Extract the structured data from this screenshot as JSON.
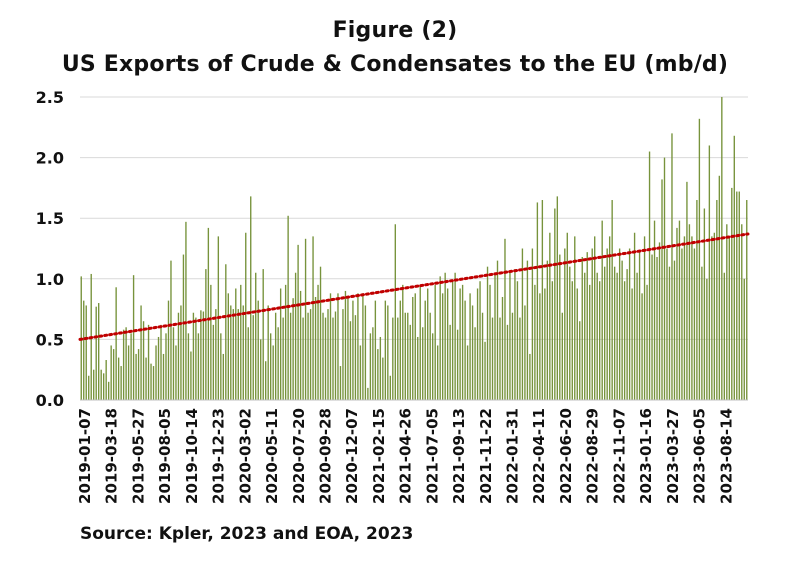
{
  "chart_data": {
    "type": "bar",
    "title": "Figure (2)",
    "subtitle": "US Exports of Crude & Condensates to the EU (mb/d)",
    "xlabel": "",
    "ylabel": "",
    "ylim": [
      0,
      2.5
    ],
    "yticks": [
      "0.0",
      "0.5",
      "1.0",
      "1.5",
      "2.0",
      "2.5"
    ],
    "xtick_labels": [
      "2019-01-07",
      "2019-03-18",
      "2019-05-27",
      "2019-08-05",
      "2019-10-14",
      "2019-12-23",
      "2020-03-02",
      "2020-05-11",
      "2020-07-20",
      "2020-09-28",
      "2020-12-07",
      "2021-02-15",
      "2021-04-26",
      "2021-07-05",
      "2021-09-13",
      "2021-11-22",
      "2022-01-31",
      "2022-04-11",
      "2022-06-20",
      "2022-08-29",
      "2022-11-07",
      "2023-01-16",
      "2023-03-27",
      "2023-06-05",
      "2023-08-14"
    ],
    "bar_color": "#77933c",
    "trendline": {
      "style": "dotted",
      "color": "#c00000",
      "start": 0.5,
      "end": 1.37
    },
    "values": [
      1.02,
      0.82,
      0.78,
      0.2,
      1.04,
      0.25,
      0.77,
      0.8,
      0.25,
      0.22,
      0.33,
      0.15,
      0.45,
      0.42,
      0.93,
      0.35,
      0.28,
      0.58,
      0.6,
      0.45,
      0.55,
      1.03,
      0.38,
      0.42,
      0.78,
      0.65,
      0.35,
      0.62,
      0.3,
      0.28,
      0.45,
      0.52,
      0.62,
      0.38,
      0.55,
      0.82,
      1.15,
      0.6,
      0.45,
      0.72,
      0.78,
      1.2,
      1.47,
      0.55,
      0.4,
      0.72,
      0.68,
      0.55,
      0.74,
      0.73,
      1.08,
      1.42,
      0.95,
      0.62,
      0.75,
      1.35,
      0.55,
      0.38,
      1.12,
      0.88,
      0.78,
      0.75,
      0.92,
      0.75,
      0.95,
      0.78,
      1.38,
      0.6,
      1.68,
      0.7,
      1.05,
      0.82,
      0.5,
      1.08,
      0.32,
      0.78,
      0.55,
      0.45,
      0.72,
      0.6,
      0.92,
      0.68,
      0.95,
      1.52,
      0.72,
      0.84,
      1.05,
      1.28,
      0.9,
      0.68,
      1.33,
      0.72,
      0.75,
      1.35,
      0.85,
      0.95,
      1.1,
      0.72,
      0.68,
      0.75,
      0.88,
      0.68,
      0.73,
      0.88,
      0.28,
      0.75,
      0.9,
      0.85,
      0.65,
      0.82,
      0.7,
      0.88,
      0.45,
      0.88,
      0.78,
      0.1,
      0.55,
      0.6,
      0.82,
      0.42,
      0.52,
      0.35,
      0.82,
      0.78,
      0.2,
      0.68,
      1.45,
      0.68,
      0.82,
      0.95,
      0.72,
      0.72,
      0.62,
      0.85,
      0.88,
      0.52,
      0.95,
      0.6,
      0.82,
      0.92,
      0.72,
      0.55,
      0.95,
      0.45,
      1.02,
      0.88,
      1.05,
      0.92,
      0.62,
      0.98,
      1.05,
      0.58,
      0.92,
      0.95,
      0.82,
      0.45,
      0.88,
      0.78,
      0.6,
      0.92,
      0.98,
      0.72,
      0.48,
      1.1,
      0.95,
      0.68,
      1.05,
      1.15,
      0.68,
      0.85,
      1.33,
      0.62,
      1.05,
      0.72,
      1.08,
      0.98,
      0.68,
      1.25,
      0.78,
      1.15,
      0.38,
      1.25,
      0.95,
      1.63,
      0.88,
      1.65,
      0.92,
      1.15,
      1.38,
      0.98,
      1.58,
      1.68,
      1.2,
      0.72,
      1.25,
      1.38,
      1.1,
      0.98,
      1.35,
      0.92,
      0.65,
      1.18,
      1.05,
      1.22,
      0.95,
      1.25,
      1.35,
      1.05,
      0.98,
      1.48,
      1.1,
      1.25,
      1.35,
      1.65,
      1.1,
      1.05,
      1.25,
      1.15,
      0.98,
      1.08,
      1.25,
      0.92,
      1.38,
      1.05,
      1.22,
      0.88,
      1.35,
      0.95,
      2.05,
      1.2,
      1.48,
      1.18,
      1.3,
      1.82,
      2.0,
      1.25,
      1.1,
      2.2,
      1.15,
      1.42,
      1.48,
      1.25,
      1.35,
      1.8,
      1.45,
      1.35,
      1.25,
      1.65,
      2.32,
      1.1,
      1.58,
      1.0,
      2.1,
      1.35,
      1.38,
      1.65,
      1.85,
      2.5,
      1.05,
      1.45,
      1.35,
      1.75,
      2.18,
      1.72,
      1.72,
      1.45,
      1.0,
      1.65
    ]
  },
  "source": "Source: Kpler, 2023 and EOA, 2023"
}
